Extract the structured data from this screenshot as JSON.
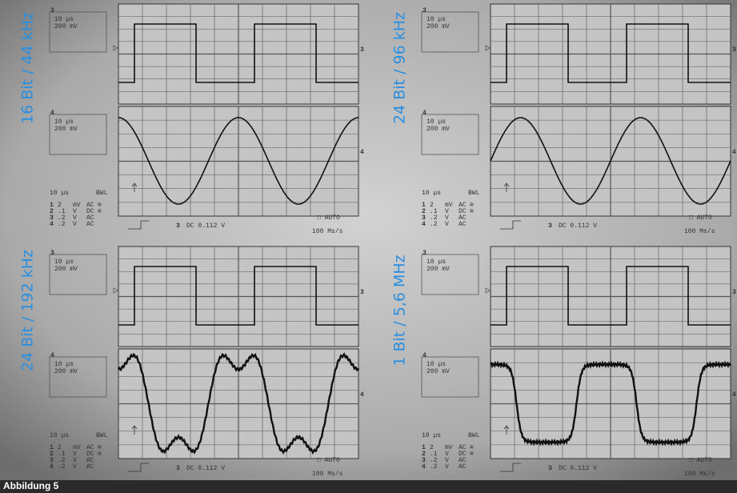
{
  "footer": "Abbildung 5",
  "panels": [
    {
      "label": "16 Bit / 44 kHz",
      "ch3": {
        "id": "3",
        "time": "10 µs",
        "volt": "200 mV"
      },
      "ch4": {
        "id": "4",
        "time": "10 µs",
        "volt": "200 mV"
      },
      "timebase": "10 µs",
      "bwl": "BWL",
      "channels": [
        {
          "ch": "1",
          "scale": "2",
          "unit": "mV",
          "coupling": "AC",
          "bw": "≋"
        },
        {
          "ch": "2",
          "scale": ".1",
          "unit": "V",
          "coupling": "DC",
          "bw": "≋"
        },
        {
          "ch": "3",
          "scale": ".2",
          "unit": "V",
          "coupling": "AC"
        },
        {
          "ch": "4",
          "scale": ".2",
          "unit": "V",
          "coupling": "AC"
        }
      ],
      "trigger": {
        "channel": "3",
        "text": "DC 0.112 V"
      },
      "mode": "□ AUTO",
      "rate": "100 Ms/s"
    },
    {
      "label": "24 Bit / 96 kHz",
      "ch3": {
        "id": "3",
        "time": "10 µs",
        "volt": "200 mV"
      },
      "ch4": {
        "id": "4",
        "time": "10 µs",
        "volt": "200 mV"
      },
      "timebase": "10 µs",
      "bwl": "BWL",
      "channels": [
        {
          "ch": "1",
          "scale": "2",
          "unit": "mV",
          "coupling": "AC",
          "bw": "≋"
        },
        {
          "ch": "2",
          "scale": ".1",
          "unit": "V",
          "coupling": "DC",
          "bw": "≋"
        },
        {
          "ch": "3",
          "scale": ".2",
          "unit": "V",
          "coupling": "AC"
        },
        {
          "ch": "4",
          "scale": ".2",
          "unit": "V",
          "coupling": "AC"
        }
      ],
      "trigger": {
        "channel": "3",
        "text": "DC 0.112 V"
      },
      "mode": "□ AUTO",
      "rate": "100 Ms/s"
    },
    {
      "label": "24 Bit / 192 kHz",
      "ch3": {
        "id": "3",
        "time": "10 µs",
        "volt": "200 mV"
      },
      "ch4": {
        "id": "4",
        "time": "10 µs",
        "volt": "200 mV"
      },
      "timebase": "10 µs",
      "bwl": "BWL",
      "channels": [
        {
          "ch": "1",
          "scale": "2",
          "unit": "mV",
          "coupling": "AC",
          "bw": "≋"
        },
        {
          "ch": "2",
          "scale": ".1",
          "unit": "V",
          "coupling": "DC",
          "bw": "≋"
        },
        {
          "ch": "3",
          "scale": ".2",
          "unit": "V",
          "coupling": "AC"
        },
        {
          "ch": "4",
          "scale": ".2",
          "unit": "V",
          "coupling": "AC"
        }
      ],
      "trigger": {
        "channel": "3",
        "text": "DC 0.112 V"
      },
      "mode": "□ AUTO",
      "rate": "100 Ms/s"
    },
    {
      "label": "1 Bit / 5,6 MHz",
      "ch3": {
        "id": "3",
        "time": "10 µs",
        "volt": "200 mV"
      },
      "ch4": {
        "id": "4",
        "time": "10 µs",
        "volt": "200 mV"
      },
      "timebase": "10 µs",
      "bwl": "BWL",
      "channels": [
        {
          "ch": "1",
          "scale": "2",
          "unit": "mV",
          "coupling": "AC",
          "bw": "≋"
        },
        {
          "ch": "2",
          "scale": ".1",
          "unit": "V",
          "coupling": "DC",
          "bw": "≋"
        },
        {
          "ch": "3",
          "scale": ".2",
          "unit": "V",
          "coupling": "AC"
        },
        {
          "ch": "4",
          "scale": ".2",
          "unit": "V",
          "coupling": "AC"
        }
      ],
      "trigger": {
        "channel": "3",
        "text": "DC 0.112 V"
      },
      "mode": "□ AUTO",
      "rate": "100 Ms/s"
    }
  ]
}
